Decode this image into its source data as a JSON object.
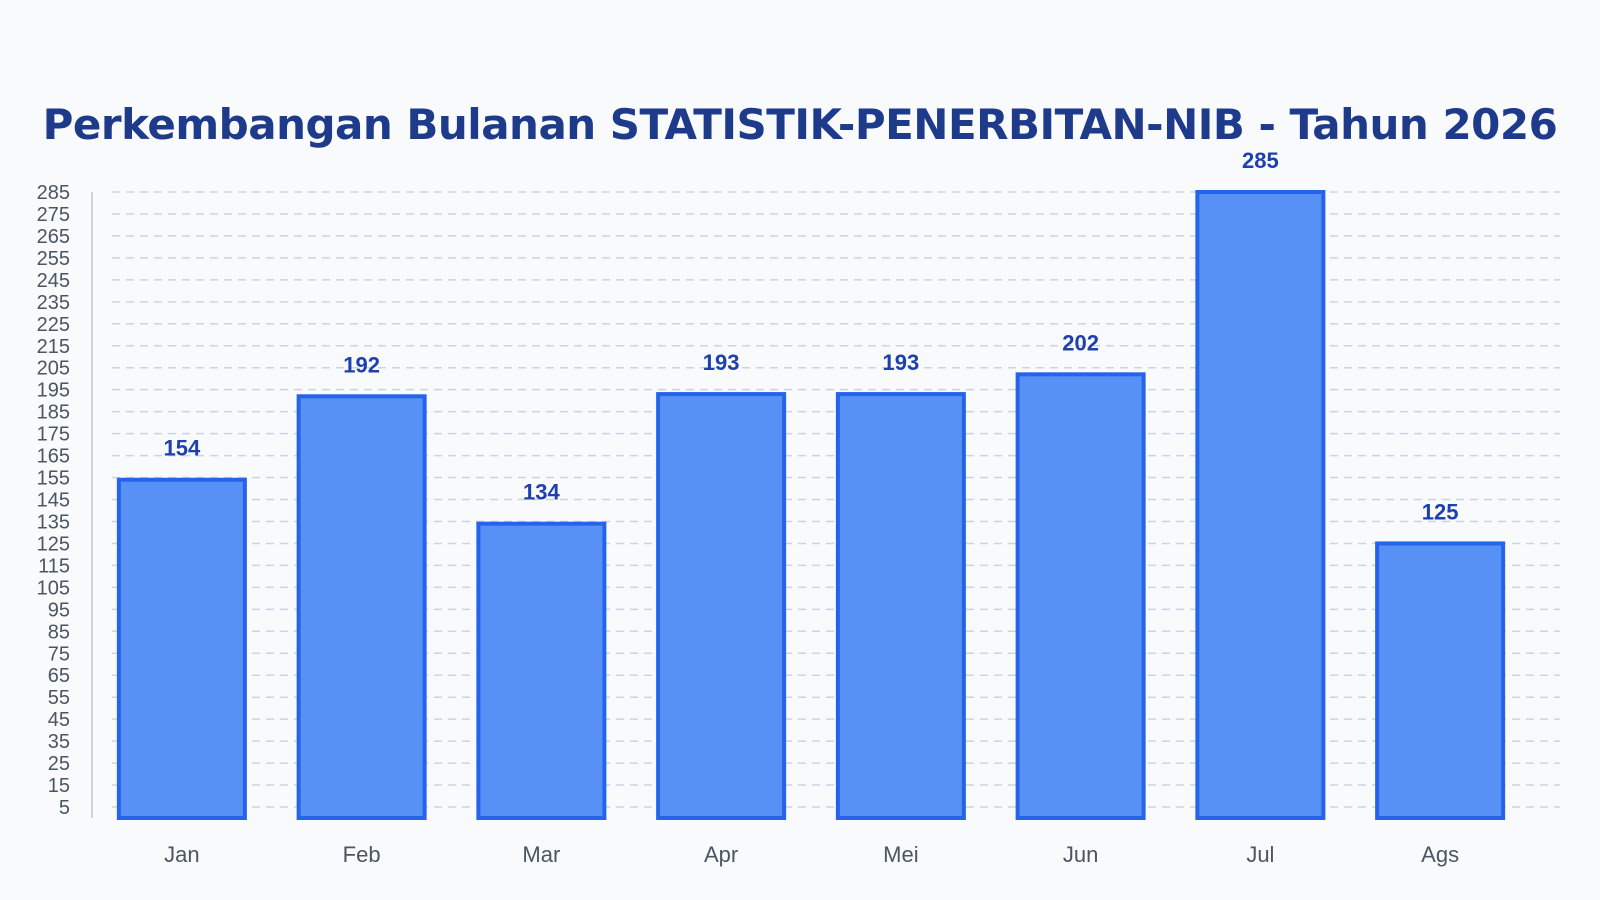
{
  "chart_data": {
    "type": "bar",
    "title": "Perkembangan Bulanan STATISTIK-PENERBITAN-NIB - Tahun 2026",
    "categories": [
      "Jan",
      "Feb",
      "Mar",
      "Apr",
      "Mei",
      "Jun",
      "Jul",
      "Ags"
    ],
    "values": [
      154,
      192,
      134,
      193,
      193,
      202,
      285,
      125
    ],
    "yticks": [
      5,
      15,
      25,
      35,
      45,
      55,
      65,
      75,
      85,
      95,
      105,
      115,
      125,
      135,
      145,
      155,
      165,
      175,
      185,
      195,
      205,
      215,
      225,
      235,
      245,
      255,
      265,
      275,
      285
    ],
    "ylim": [
      0,
      285
    ],
    "grid": true,
    "xlabel": "",
    "ylabel": "",
    "colors": {
      "bar_fill": "#5891f5",
      "bar_stroke": "#2563eb",
      "label": "#1e40af",
      "title": "#1e3a8a",
      "grid": "#cbd5e1",
      "axis": "#cbd5e1"
    }
  }
}
